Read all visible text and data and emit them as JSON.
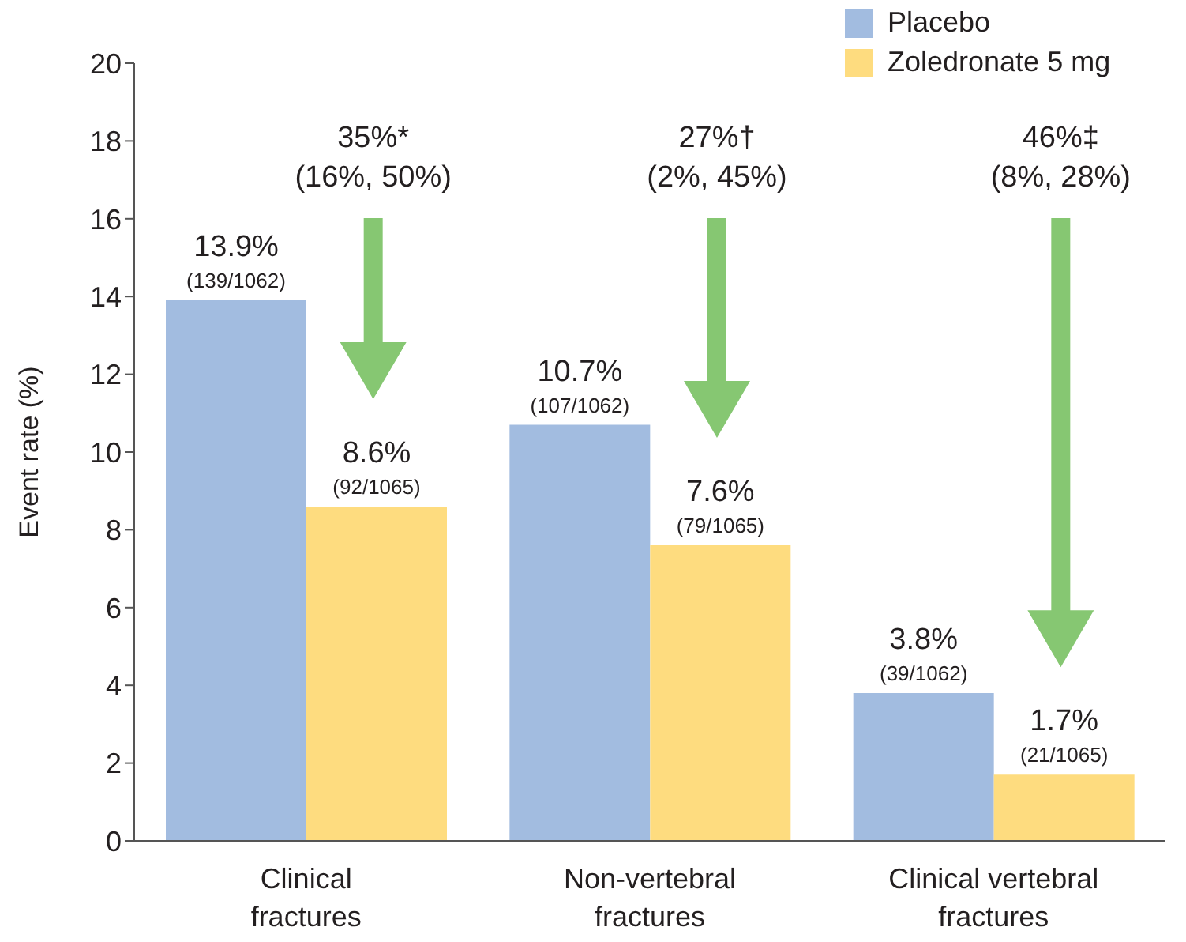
{
  "chart_data": {
    "type": "bar",
    "ylabel": "Event rate (%)",
    "categories": [
      "Clinical fractures",
      "Non-vertebral fractures",
      "Clinical vertebral fractures"
    ],
    "series": [
      {
        "name": "Placebo",
        "color": "#a2bce0",
        "values": [
          13.9,
          10.7,
          3.8
        ],
        "value_labels": [
          "13.9%\n(139/1062)",
          "10.7%\n(107/1062)",
          "3.8%\n(39/1062)"
        ]
      },
      {
        "name": "Zoledronate 5 mg",
        "color": "#fedc7f",
        "values": [
          8.6,
          7.6,
          1.7
        ],
        "value_labels": [
          "8.6%\n(92/1065)",
          "7.6%\n(79/1065)",
          "1.7%\n(21/1065)"
        ]
      }
    ],
    "annotations": [
      "35%*\n(16%, 50%)",
      "27%†\n(2%, 45%)",
      "46%‡\n(8%, 28%)"
    ],
    "ylim": [
      0,
      20
    ],
    "yticks": [
      0,
      2,
      4,
      6,
      8,
      10,
      12,
      14,
      16,
      18,
      20
    ],
    "grid": false,
    "legend": "top right"
  }
}
